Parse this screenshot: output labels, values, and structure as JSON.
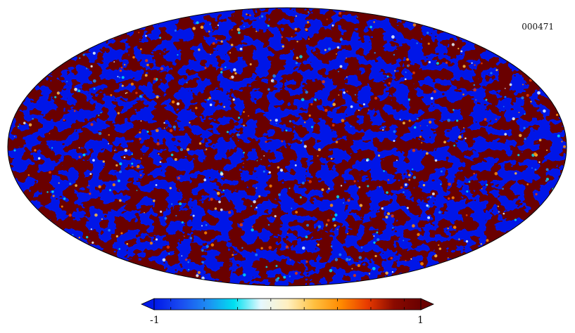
{
  "map": {
    "id_label": "000471",
    "projection": "mollweide",
    "colormap": [
      "#0018e8",
      "#1a4cf0",
      "#1e8cf2",
      "#00e0f0",
      "#e6f8ff",
      "#fff0c0",
      "#ffc040",
      "#ff8a00",
      "#e83a00",
      "#8a0a00",
      "#6a0000"
    ],
    "low_color": "#0018e8",
    "high_color": "#6a0000"
  },
  "colorbar": {
    "min_label": "-1",
    "max_label": "1",
    "min": -1,
    "max": 1,
    "ticks": [
      -0.875,
      -0.625,
      -0.375,
      -0.125,
      0.125,
      0.375,
      0.625,
      0.875
    ]
  }
}
